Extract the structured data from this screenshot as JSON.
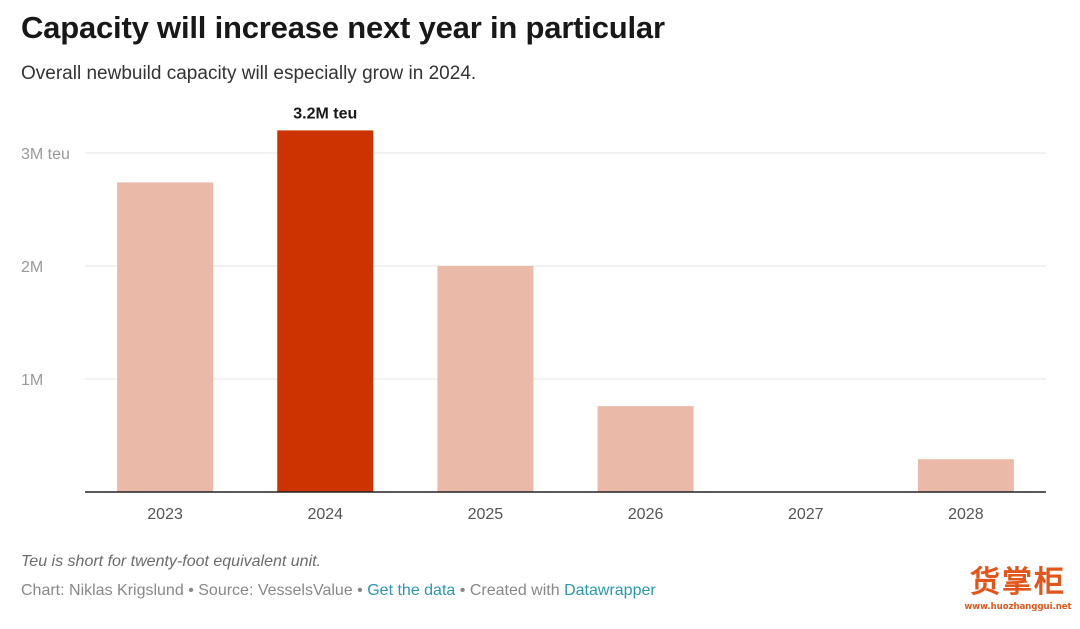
{
  "header": {
    "title": "Capacity will increase next year in particular",
    "subtitle": "Overall newbuild capacity will especially grow in 2024."
  },
  "chart_data": {
    "type": "bar",
    "categories": [
      "2023",
      "2024",
      "2025",
      "2026",
      "2027",
      "2028"
    ],
    "values": [
      2.74,
      3.2,
      2.0,
      0.76,
      0.0,
      0.29
    ],
    "unit": "million teu",
    "ylim": [
      0,
      3.2
    ],
    "y_ticks": [
      {
        "value": 1,
        "label": "1M"
      },
      {
        "value": 2,
        "label": "2M"
      },
      {
        "value": 3,
        "label": "3M teu"
      }
    ],
    "highlight_index": 1,
    "highlight_label": "3.2M teu",
    "grid": true,
    "colors": {
      "bar": "#ebb9a7",
      "highlight": "#cc3300",
      "grid": "#e6e6e6",
      "baseline": "#222222",
      "tick_text": "#999999",
      "category_text": "#555555"
    }
  },
  "footer": {
    "note": "Teu is short for twenty-foot equivalent unit.",
    "credit": "Chart: Niklas Krigslund",
    "source": "Source: VesselsValue",
    "get_data": "Get the data",
    "created_with": "Created with",
    "tool": "Datawrapper",
    "separator": "•"
  },
  "watermark": {
    "chars": "货掌柜",
    "url": "www.huozhanggui.net"
  }
}
